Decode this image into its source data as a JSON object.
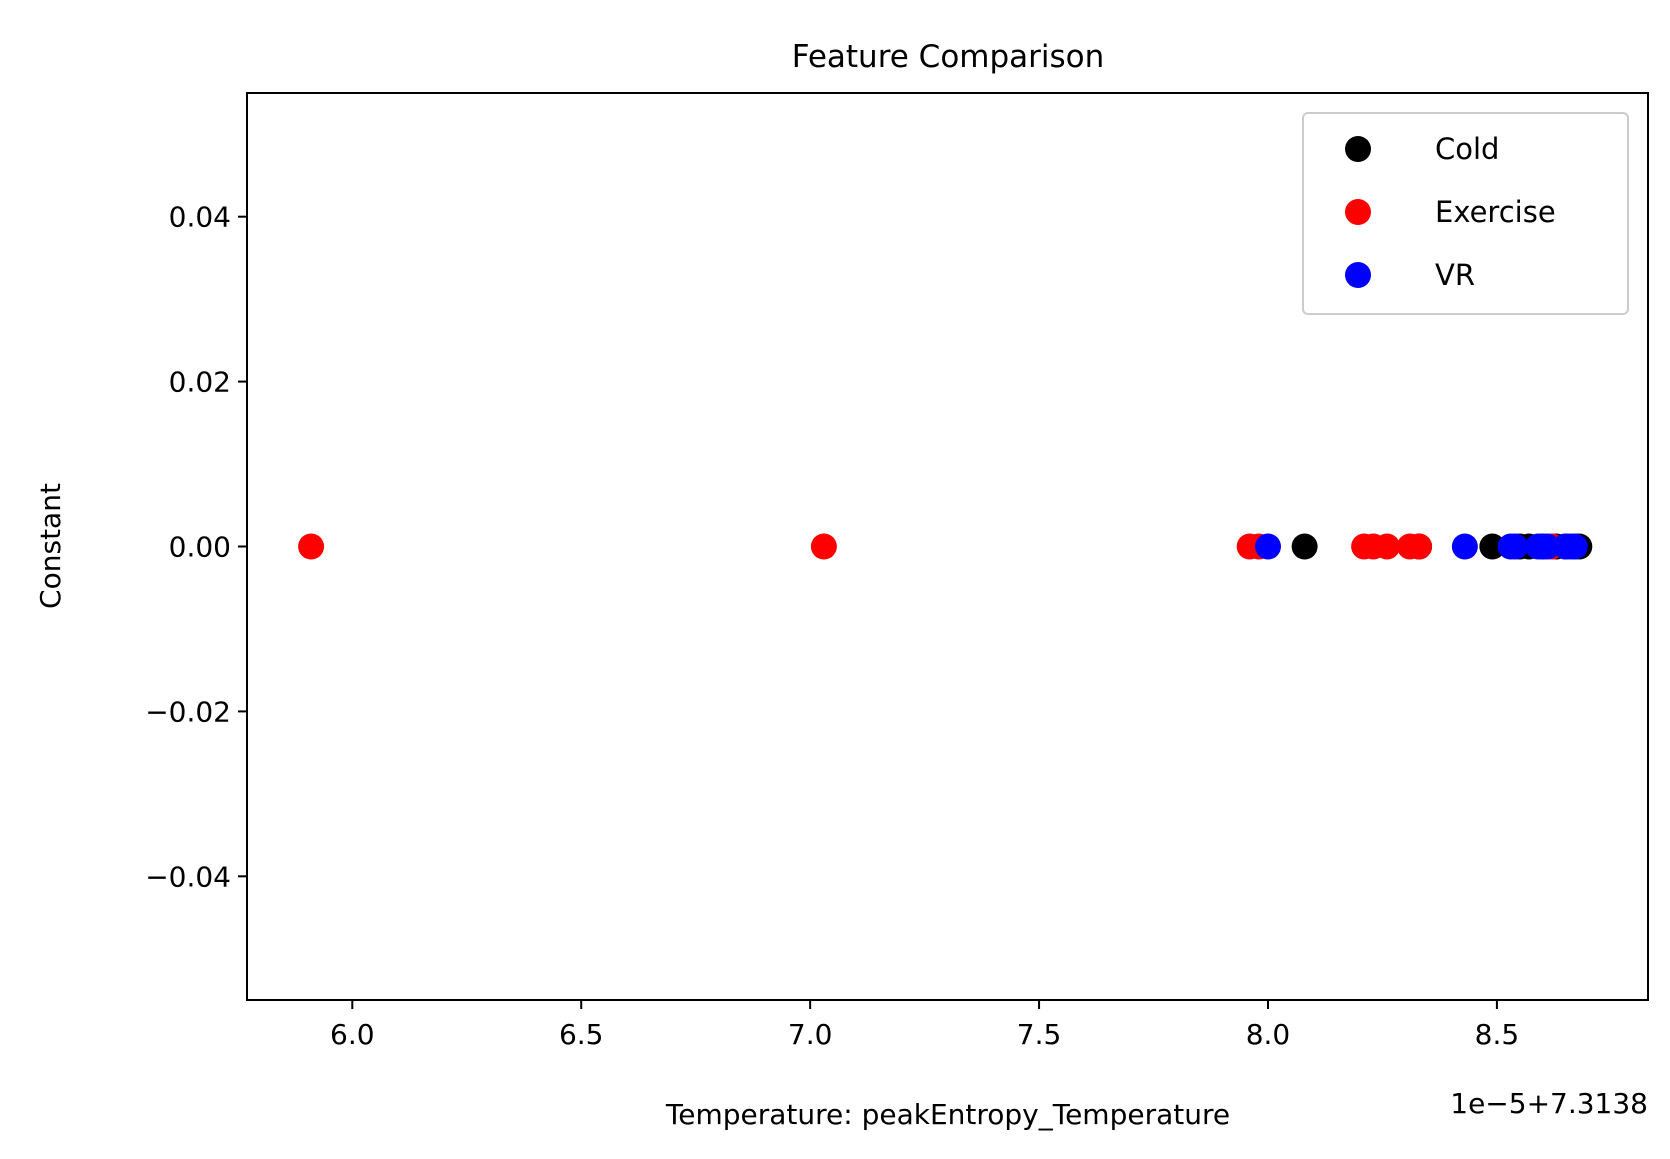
{
  "chart_data": {
    "type": "scatter",
    "title": "Feature Comparison",
    "xlabel": "Temperature: peakEntropy_Temperature",
    "ylabel": "Constant",
    "x_offset_text": "1e−5+7.3138",
    "xlim": [
      5.77,
      8.83
    ],
    "ylim": [
      -0.055,
      0.055
    ],
    "xticks": [
      6.0,
      6.5,
      7.0,
      7.5,
      8.0,
      8.5
    ],
    "xtick_labels": [
      "6.0",
      "6.5",
      "7.0",
      "7.5",
      "8.0",
      "8.5"
    ],
    "yticks": [
      0.04,
      0.02,
      0.0,
      -0.02,
      -0.04
    ],
    "ytick_labels": [
      "0.04",
      "0.02",
      "0.00",
      "−0.02",
      "−0.04"
    ],
    "grid": false,
    "legend_position": "top-right",
    "series": [
      {
        "name": "Cold",
        "color": "#000000",
        "x": [
          8.08,
          8.33,
          8.49,
          8.55,
          8.57,
          8.6,
          8.63,
          8.65,
          8.67,
          8.68
        ],
        "y": [
          0,
          0,
          0,
          0,
          0,
          0,
          0,
          0,
          0,
          0
        ]
      },
      {
        "name": "Exercise",
        "color": "#ff0000",
        "x": [
          5.91,
          7.03,
          7.96,
          7.98,
          8.21,
          8.23,
          8.26,
          8.31,
          8.33,
          8.62
        ],
        "y": [
          0,
          0,
          0,
          0,
          0,
          0,
          0,
          0,
          0,
          0
        ]
      },
      {
        "name": "VR",
        "color": "#0000ff",
        "x": [
          8.0,
          8.43,
          8.53,
          8.54,
          8.59,
          8.6,
          8.61,
          8.65,
          8.66,
          8.67
        ],
        "y": [
          0,
          0,
          0,
          0,
          0,
          0,
          0,
          0,
          0,
          0
        ]
      }
    ]
  }
}
